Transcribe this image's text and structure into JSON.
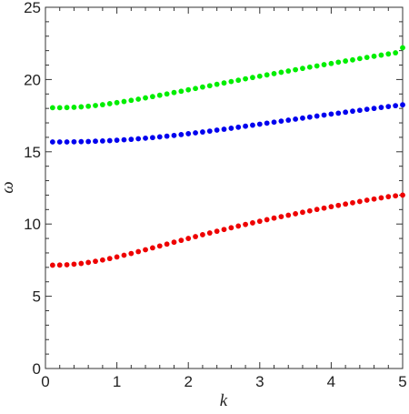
{
  "chart_data": {
    "type": "scatter",
    "title": "",
    "xlabel": "k",
    "ylabel": "ω",
    "xlim": [
      0,
      5
    ],
    "ylim": [
      0,
      25
    ],
    "grid": false,
    "x_ticks": [
      0,
      1,
      2,
      3,
      4,
      5
    ],
    "y_ticks": [
      0,
      5,
      10,
      15,
      20,
      25
    ],
    "x_tick_labels": [
      "0",
      "1",
      "2",
      "3",
      "4",
      "5"
    ],
    "y_tick_labels": [
      "0",
      "5",
      "10",
      "15",
      "20",
      "25"
    ],
    "x": [
      0.1,
      0.2,
      0.3,
      0.4,
      0.5,
      0.6,
      0.7,
      0.8,
      0.9,
      1.0,
      1.1,
      1.2,
      1.3,
      1.4,
      1.5,
      1.6,
      1.7,
      1.8,
      1.9,
      2.0,
      2.1,
      2.2,
      2.3,
      2.4,
      2.5,
      2.6,
      2.7,
      2.8,
      2.9,
      3.0,
      3.1,
      3.2,
      3.3,
      3.4,
      3.5,
      3.6,
      3.7,
      3.8,
      3.9,
      4.0,
      4.1,
      4.2,
      4.3,
      4.4,
      4.5,
      4.6,
      4.7,
      4.8,
      4.9,
      5.0
    ],
    "series": [
      {
        "color": "#00ee00",
        "values": [
          18.05,
          18.05,
          18.06,
          18.08,
          18.11,
          18.15,
          18.2,
          18.26,
          18.33,
          18.4,
          18.48,
          18.56,
          18.64,
          18.73,
          18.82,
          18.91,
          19.0,
          19.1,
          19.19,
          19.29,
          19.38,
          19.48,
          19.57,
          19.67,
          19.76,
          19.86,
          19.95,
          20.05,
          20.14,
          20.23,
          20.32,
          20.41,
          20.5,
          20.59,
          20.68,
          20.77,
          20.86,
          20.94,
          21.03,
          21.11,
          21.2,
          21.28,
          21.36,
          21.45,
          21.53,
          21.61,
          21.69,
          21.77,
          21.85,
          22.2
        ]
      },
      {
        "color": "#0000ee",
        "values": [
          15.68,
          15.68,
          15.68,
          15.69,
          15.7,
          15.71,
          15.73,
          15.75,
          15.77,
          15.8,
          15.83,
          15.86,
          15.9,
          15.94,
          15.98,
          16.03,
          16.08,
          16.13,
          16.19,
          16.25,
          16.31,
          16.37,
          16.43,
          16.5,
          16.56,
          16.63,
          16.7,
          16.77,
          16.84,
          16.91,
          16.98,
          17.05,
          17.12,
          17.19,
          17.26,
          17.33,
          17.4,
          17.47,
          17.54,
          17.61,
          17.67,
          17.74,
          17.81,
          17.87,
          17.94,
          18.0,
          18.07,
          18.13,
          18.19,
          18.25
        ]
      },
      {
        "color": "#ee0000",
        "values": [
          7.15,
          7.16,
          7.18,
          7.22,
          7.27,
          7.34,
          7.42,
          7.51,
          7.61,
          7.72,
          7.84,
          7.96,
          8.09,
          8.22,
          8.35,
          8.48,
          8.61,
          8.74,
          8.87,
          9.0,
          9.13,
          9.26,
          9.38,
          9.5,
          9.62,
          9.74,
          9.86,
          9.97,
          10.08,
          10.19,
          10.3,
          10.41,
          10.51,
          10.61,
          10.71,
          10.81,
          10.91,
          11.01,
          11.1,
          11.2,
          11.29,
          11.38,
          11.47,
          11.56,
          11.65,
          11.73,
          11.81,
          11.89,
          11.95,
          12.0
        ]
      }
    ]
  }
}
